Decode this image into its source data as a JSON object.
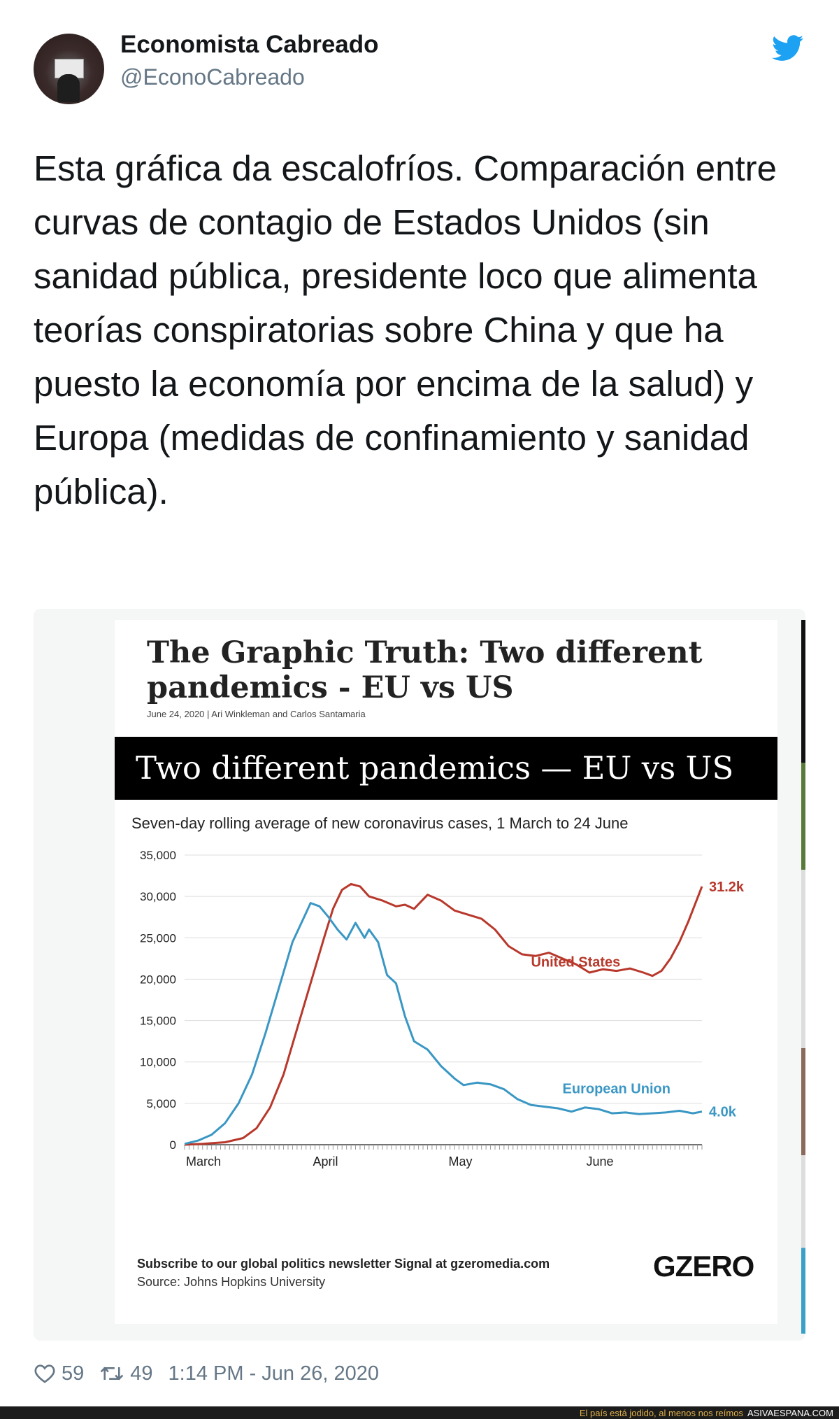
{
  "tweet": {
    "display_name": "Economista Cabreado",
    "handle": "@EconoCabreado",
    "text": "Esta gráfica da escalofríos. Comparación entre curvas de contagio de Estados Unidos (sin sanidad pública, presidente loco que alimenta teorías conspiratorias sobre China y que ha puesto la economía por encima de la salud) y Europa (medidas de confinamiento y sanidad pública).",
    "likes": "59",
    "retweets": "49",
    "timestamp": "1:14 PM - Jun 26, 2020",
    "icons": {
      "bird": "twitter-bird-icon",
      "like": "heart-icon",
      "retweet": "retweet-icon"
    },
    "colors": {
      "accent": "#1da1f2",
      "secondary_text": "#657786"
    }
  },
  "article": {
    "headline": "The Graphic Truth: Two different pandemics - EU vs US",
    "byline_date": "June 24, 2020 | Ari Winkleman",
    "byline_and": "and",
    "byline_author2": "Carlos Santamaria",
    "banner_title": "Two different pandemics — EU vs US",
    "footer_subscribe": "Subscribe to our global politics newsletter Signal at gzeromedia.com",
    "footer_source": "Source: Johns Hopkins University",
    "brand": "GZERO"
  },
  "chart_data": {
    "type": "line",
    "title": "Two different pandemics — EU vs US",
    "subtitle": "Seven-day rolling average of new coronavirus cases, 1 March to 24 June",
    "x_range": [
      "2020-03-01",
      "2020-06-24"
    ],
    "x_ticks": [
      {
        "date": "2020-03-01",
        "label": "March"
      },
      {
        "date": "2020-04-01",
        "label": "April"
      },
      {
        "date": "2020-05-01",
        "label": "May"
      },
      {
        "date": "2020-06-01",
        "label": "June"
      }
    ],
    "ylim": [
      0,
      35000
    ],
    "y_ticks": [
      0,
      5000,
      10000,
      15000,
      20000,
      25000,
      30000,
      35000
    ],
    "y_tick_labels": [
      "0",
      "5,000",
      "10,000",
      "15,000",
      "20,000",
      "25,000",
      "30,000",
      "35,000"
    ],
    "grid": true,
    "series": [
      {
        "name": "United States",
        "color": "#b8382b",
        "end_label": "31.2k",
        "points": [
          [
            "2020-03-01",
            0
          ],
          [
            "2020-03-05",
            100
          ],
          [
            "2020-03-10",
            300
          ],
          [
            "2020-03-14",
            800
          ],
          [
            "2020-03-17",
            2000
          ],
          [
            "2020-03-20",
            4500
          ],
          [
            "2020-03-23",
            8500
          ],
          [
            "2020-03-26",
            14000
          ],
          [
            "2020-03-29",
            19500
          ],
          [
            "2020-04-01",
            25000
          ],
          [
            "2020-04-03",
            28500
          ],
          [
            "2020-04-05",
            30800
          ],
          [
            "2020-04-07",
            31500
          ],
          [
            "2020-04-09",
            31200
          ],
          [
            "2020-04-11",
            30000
          ],
          [
            "2020-04-14",
            29500
          ],
          [
            "2020-04-17",
            28800
          ],
          [
            "2020-04-19",
            29000
          ],
          [
            "2020-04-21",
            28500
          ],
          [
            "2020-04-24",
            30200
          ],
          [
            "2020-04-27",
            29500
          ],
          [
            "2020-04-30",
            28300
          ],
          [
            "2020-05-03",
            27800
          ],
          [
            "2020-05-06",
            27300
          ],
          [
            "2020-05-09",
            26000
          ],
          [
            "2020-05-12",
            24000
          ],
          [
            "2020-05-15",
            23000
          ],
          [
            "2020-05-18",
            22800
          ],
          [
            "2020-05-21",
            23200
          ],
          [
            "2020-05-24",
            22500
          ],
          [
            "2020-05-27",
            21800
          ],
          [
            "2020-05-30",
            20800
          ],
          [
            "2020-06-02",
            21200
          ],
          [
            "2020-06-05",
            21000
          ],
          [
            "2020-06-08",
            21300
          ],
          [
            "2020-06-11",
            20800
          ],
          [
            "2020-06-13",
            20400
          ],
          [
            "2020-06-15",
            21000
          ],
          [
            "2020-06-17",
            22500
          ],
          [
            "2020-06-19",
            24500
          ],
          [
            "2020-06-21",
            27000
          ],
          [
            "2020-06-24",
            31200
          ]
        ]
      },
      {
        "name": "European Union",
        "color": "#3a97c4",
        "end_label": "4.0k",
        "points": [
          [
            "2020-03-01",
            100
          ],
          [
            "2020-03-04",
            500
          ],
          [
            "2020-03-07",
            1200
          ],
          [
            "2020-03-10",
            2600
          ],
          [
            "2020-03-13",
            5000
          ],
          [
            "2020-03-16",
            8500
          ],
          [
            "2020-03-19",
            13500
          ],
          [
            "2020-03-22",
            19000
          ],
          [
            "2020-03-25",
            24500
          ],
          [
            "2020-03-28",
            28000
          ],
          [
            "2020-03-29",
            29200
          ],
          [
            "2020-03-31",
            28800
          ],
          [
            "2020-04-02",
            27500
          ],
          [
            "2020-04-04",
            26000
          ],
          [
            "2020-04-06",
            24800
          ],
          [
            "2020-04-08",
            26800
          ],
          [
            "2020-04-10",
            25000
          ],
          [
            "2020-04-11",
            26000
          ],
          [
            "2020-04-13",
            24500
          ],
          [
            "2020-04-15",
            20500
          ],
          [
            "2020-04-17",
            19500
          ],
          [
            "2020-04-19",
            15500
          ],
          [
            "2020-04-21",
            12500
          ],
          [
            "2020-04-24",
            11500
          ],
          [
            "2020-04-27",
            9500
          ],
          [
            "2020-04-30",
            8000
          ],
          [
            "2020-05-02",
            7200
          ],
          [
            "2020-05-05",
            7500
          ],
          [
            "2020-05-08",
            7300
          ],
          [
            "2020-05-11",
            6700
          ],
          [
            "2020-05-14",
            5500
          ],
          [
            "2020-05-17",
            4800
          ],
          [
            "2020-05-20",
            4600
          ],
          [
            "2020-05-23",
            4400
          ],
          [
            "2020-05-26",
            4000
          ],
          [
            "2020-05-29",
            4500
          ],
          [
            "2020-06-01",
            4300
          ],
          [
            "2020-06-04",
            3800
          ],
          [
            "2020-06-07",
            3900
          ],
          [
            "2020-06-10",
            3700
          ],
          [
            "2020-06-13",
            3800
          ],
          [
            "2020-06-16",
            3900
          ],
          [
            "2020-06-19",
            4100
          ],
          [
            "2020-06-22",
            3800
          ],
          [
            "2020-06-24",
            4000
          ]
        ]
      }
    ]
  },
  "watermark": {
    "tagline": "El país está jodido, al menos nos reímos",
    "site": "ASIVAESPANA.COM"
  }
}
